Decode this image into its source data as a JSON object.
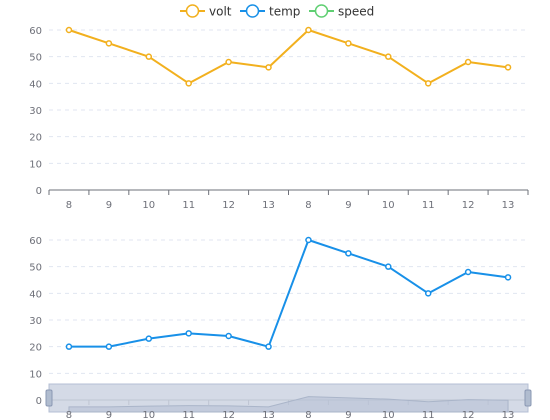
{
  "legend": {
    "items": [
      {
        "name": "volt",
        "color": "#f2b01e"
      },
      {
        "name": "temp",
        "color": "#1890e8"
      },
      {
        "name": "speed",
        "color": "#5fcf72"
      }
    ]
  },
  "chart_data": [
    {
      "type": "line",
      "categories": [
        "8",
        "9",
        "10",
        "11",
        "12",
        "13",
        "8",
        "9",
        "10",
        "11",
        "12",
        "13"
      ],
      "series": [
        {
          "name": "volt",
          "color": "#f2b01e",
          "values": [
            60,
            55,
            50,
            40,
            48,
            46,
            60,
            55,
            50,
            40,
            48,
            46
          ]
        }
      ],
      "ylim": [
        0,
        60
      ],
      "yticks": [
        0,
        10,
        20,
        30,
        40,
        50,
        60
      ],
      "grid": true,
      "legend": "top-center"
    },
    {
      "type": "line",
      "categories": [
        "8",
        "9",
        "10",
        "11",
        "12",
        "13",
        "8",
        "9",
        "10",
        "11",
        "12",
        "13"
      ],
      "series": [
        {
          "name": "temp",
          "color": "#1890e8",
          "values": [
            20,
            20,
            23,
            25,
            24,
            20,
            60,
            55,
            50,
            40,
            48,
            46
          ]
        }
      ],
      "ylim": [
        0,
        60
      ],
      "yticks": [
        0,
        10,
        20,
        30,
        40,
        50,
        60
      ],
      "grid": true,
      "data_zoom": {
        "start_fraction": 0,
        "end_fraction": 1
      }
    }
  ]
}
